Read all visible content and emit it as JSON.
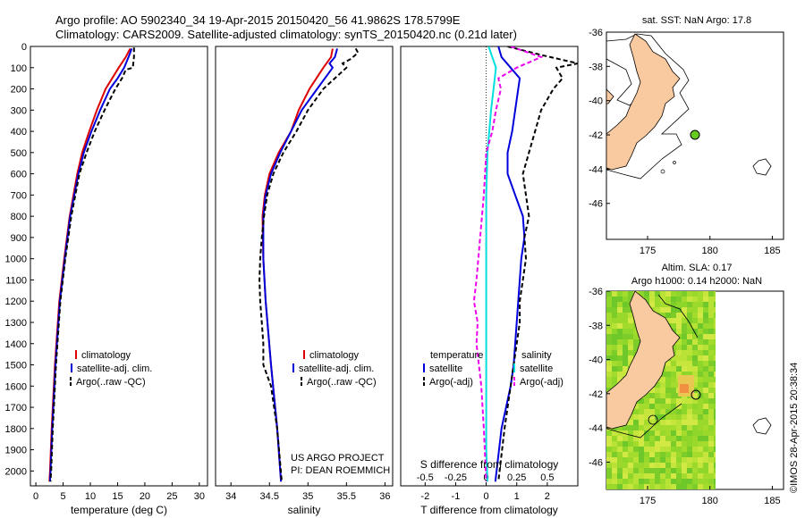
{
  "header": {
    "line1": "Argo profile: AO 5902340_34 19-Apr-2015 20150420_56 41.9862S 178.5799E",
    "line2": "Climatology: CARS2009. Satellite-adjusted climatology: synTS_20150420.nc (0.21d later)"
  },
  "colors": {
    "climatology": "#dd0000",
    "satellite": "#0000dd",
    "argo": "#000000",
    "sat_salinity": "#00e0e0",
    "argo_sal": "#ee00ee",
    "land": "#f9c9a0",
    "argo_dot": "#66cc22"
  },
  "depth_ticks": [
    "0",
    "100",
    "200",
    "300",
    "400",
    "500",
    "600",
    "700",
    "800",
    "900",
    "1000",
    "1100",
    "1200",
    "1300",
    "1400",
    "1500",
    "1600",
    "1700",
    "1800",
    "1900",
    "2000"
  ],
  "chart_data": [
    {
      "type": "line",
      "xlabel": "temperature (deg C)",
      "xticks": [
        "0",
        "5",
        "10",
        "15",
        "20",
        "25",
        "30"
      ],
      "xlim": [
        -1,
        31.5
      ],
      "ylim": [
        2070,
        0
      ],
      "legend": [
        "climatology",
        "satellite-adj. clim.",
        "Argo(..raw -QC)"
      ],
      "series": [
        {
          "name": "climatology",
          "y": [
            10,
            50,
            100,
            150,
            200,
            300,
            400,
            500,
            600,
            800,
            1000,
            1200,
            1500,
            1800,
            2000,
            2050
          ],
          "values": [
            17.3,
            16.5,
            15.2,
            14.0,
            12.8,
            11.2,
            9.8,
            8.5,
            7.6,
            6.2,
            5.2,
            4.3,
            3.5,
            2.9,
            2.6,
            2.5
          ]
        },
        {
          "name": "satellite-adj. clim.",
          "y": [
            10,
            50,
            100,
            150,
            200,
            300,
            400,
            500,
            600,
            800,
            1000,
            1200,
            1500,
            1800,
            2000,
            2050
          ],
          "values": [
            17.6,
            17.0,
            16.2,
            15.0,
            13.6,
            11.8,
            10.2,
            8.8,
            7.8,
            6.3,
            5.3,
            4.4,
            3.6,
            3.0,
            2.7,
            2.6
          ]
        },
        {
          "name": "Argo(..raw -QC)",
          "y": [
            5,
            50,
            100,
            110,
            150,
            200,
            300,
            400,
            500,
            600,
            800,
            1000,
            1200,
            1500,
            1800,
            2000,
            2050
          ],
          "values": [
            18.0,
            18.0,
            17.8,
            16.5,
            15.8,
            14.6,
            12.6,
            10.8,
            9.3,
            8.0,
            6.5,
            5.4,
            4.5,
            3.7,
            3.1,
            2.8,
            2.7
          ]
        }
      ]
    },
    {
      "type": "line",
      "xlabel": "salinity",
      "xticks": [
        "34",
        "34.5",
        "35",
        "35.5",
        "36"
      ],
      "xlim": [
        33.8,
        36.1
      ],
      "ylim": [
        2070,
        0
      ],
      "legend": [
        "climatology",
        "satellite-adj. clim.",
        "Argo(..raw -QC)"
      ],
      "annotation": [
        "US ARGO PROJECT",
        "PI: DEAN ROEMMICH"
      ],
      "series": [
        {
          "name": "climatology",
          "y": [
            10,
            50,
            100,
            200,
            300,
            400,
            500,
            600,
            700,
            800,
            1000,
            1200,
            1500,
            1800,
            2050
          ],
          "values": [
            35.32,
            35.3,
            35.2,
            35.02,
            34.88,
            34.78,
            34.62,
            34.5,
            34.44,
            34.41,
            34.42,
            34.45,
            34.52,
            34.6,
            34.65
          ]
        },
        {
          "name": "satellite-adj. clim.",
          "y": [
            10,
            50,
            80,
            100,
            200,
            300,
            400,
            500,
            600,
            700,
            800,
            1000,
            1200,
            1500,
            1800,
            2050
          ],
          "values": [
            35.38,
            35.35,
            35.28,
            35.32,
            35.12,
            34.92,
            34.78,
            34.64,
            34.52,
            34.45,
            34.42,
            34.42,
            34.45,
            34.52,
            34.6,
            34.65
          ]
        },
        {
          "name": "Argo(..raw -QC)",
          "y": [
            10,
            30,
            60,
            80,
            100,
            200,
            300,
            400,
            500,
            600,
            700,
            800,
            900,
            1000,
            1100,
            1200,
            1300,
            1400,
            1500,
            1600,
            1800,
            2050
          ],
          "values": [
            35.62,
            35.65,
            35.55,
            35.45,
            35.5,
            35.2,
            35.0,
            34.85,
            34.68,
            34.55,
            34.47,
            34.43,
            34.4,
            34.38,
            34.37,
            34.38,
            34.4,
            34.42,
            34.42,
            34.52,
            34.6,
            34.66
          ]
        }
      ]
    },
    {
      "type": "line",
      "xlabel": "T difference from climatology",
      "xlabel_top": "S difference from climatology",
      "xticks": [
        "-2",
        "-1",
        "0",
        "1",
        "2"
      ],
      "xticks_top": [
        "-0.5",
        "-0.25",
        "0",
        "0.25",
        "0.5"
      ],
      "xlim": [
        -2.8,
        3.0
      ],
      "ylim": [
        2070,
        0
      ],
      "legend_headers": [
        "temperature",
        "salinity"
      ],
      "legend": [
        "satellite",
        "Argo(-adj)",
        "satellite",
        "Argo(-adj)"
      ],
      "series": [
        {
          "name": "satellite",
          "y": [
            0,
            50,
            100,
            150,
            200,
            300,
            400,
            500,
            600,
            700,
            800,
            900,
            1000,
            1100,
            1200,
            1300,
            1400,
            1500,
            1600,
            1800,
            2050
          ],
          "values": [
            0.4,
            0.5,
            0.8,
            1.1,
            1.05,
            0.95,
            0.85,
            0.7,
            0.7,
            0.95,
            1.2,
            1.25,
            1.15,
            1.1,
            1.05,
            1.0,
            0.95,
            0.9,
            0.8,
            0.5,
            0.3
          ]
        },
        {
          "name": "Argo(-adj)",
          "y": [
            0,
            40,
            80,
            100,
            150,
            200,
            300,
            400,
            500,
            600,
            700,
            800,
            900,
            1000,
            1100,
            1200,
            1300,
            1400,
            1500,
            1600,
            1800,
            2050
          ],
          "values": [
            0.7,
            1.8,
            3.0,
            2.3,
            2.5,
            2.2,
            1.8,
            1.6,
            1.4,
            1.2,
            1.3,
            1.4,
            1.25,
            1.3,
            1.2,
            1.1,
            1.1,
            1.0,
            0.9,
            0.8,
            0.6,
            0.4
          ]
        },
        {
          "name": "satellite",
          "y": [
            0,
            50,
            100,
            200,
            300,
            500,
            700,
            900,
            1100,
            1300,
            1500,
            1700,
            1900,
            2050
          ],
          "values": [
            0.02,
            0.05,
            0.08,
            0.06,
            0.04,
            0.01,
            0.0,
            0.0,
            0.0,
            0.0,
            0.0,
            0.0,
            0.0,
            0.01
          ]
        },
        {
          "name": "Argo(-adj)",
          "y": [
            0,
            50,
            100,
            150,
            200,
            300,
            400,
            500,
            700,
            900,
            1100,
            1200,
            1300,
            1400,
            1500,
            1600,
            1800,
            2050
          ],
          "values": [
            0.2,
            0.45,
            0.25,
            0.1,
            0.12,
            0.08,
            0.05,
            0.0,
            -0.02,
            -0.05,
            -0.08,
            -0.1,
            -0.07,
            -0.08,
            -0.06,
            -0.04,
            -0.02,
            0.0
          ]
        }
      ]
    }
  ],
  "map_top": {
    "title": "sat. SST: NaN Argo: 17.8",
    "yticks": [
      "-36",
      "-38",
      "-40",
      "-42",
      "-44",
      "-46"
    ],
    "xticks": [
      "175",
      "180",
      "185"
    ]
  },
  "map_bottom": {
    "title1": "Altim. SLA: 0.17",
    "title2": "Argo h1000: 0.14 h2000: NaN",
    "yticks": [
      "-36",
      "-38",
      "-40",
      "-42",
      "-44",
      "-46"
    ],
    "xticks": [
      "175",
      "180",
      "185"
    ]
  },
  "credit": "©IMOS 28-Apr-2015 20:38:34"
}
